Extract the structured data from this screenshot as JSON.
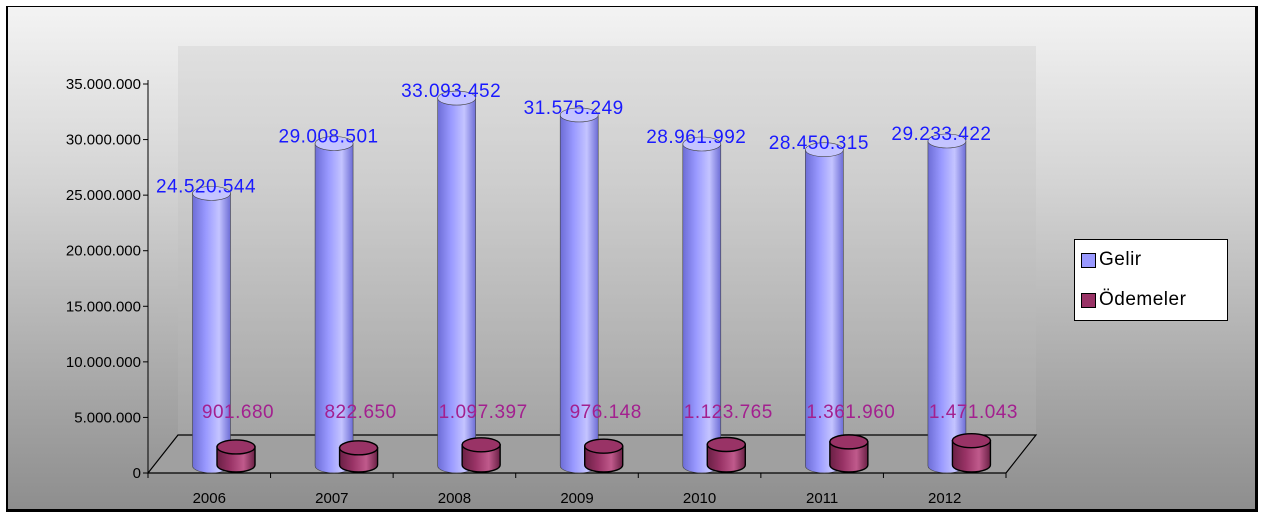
{
  "colors": {
    "gelir": "#9999ff",
    "gelir_dark": "#6d6dd6",
    "gelir_light": "#c4c4ff",
    "odemeler": "#993366",
    "odemeler_dark": "#6a2045",
    "odemeler_light": "#c05a8c",
    "gelir_label": "#1a1aff",
    "odemeler_label": "#a3208f"
  },
  "chart_data": {
    "type": "bar",
    "style": "3d-cylinder",
    "categories": [
      "2006",
      "2007",
      "2008",
      "2009",
      "2010",
      "2011",
      "2012"
    ],
    "series": [
      {
        "name": "Gelir",
        "values": [
          24520544,
          29008501,
          33093452,
          31575249,
          28961992,
          28450315,
          29233422
        ],
        "labels": [
          "24.520.544",
          "29.008.501",
          "33.093.452",
          "31.575.249",
          "28.961.992",
          "28.450.315",
          "29.233.422"
        ]
      },
      {
        "name": "Ödemeler",
        "values": [
          901680,
          822650,
          1097397,
          976148,
          1123765,
          1361960,
          1471043
        ],
        "labels": [
          "901.680",
          "822.650",
          "1.097.397",
          "976.148",
          "1.123.765",
          "1.361.960",
          "1.471.043"
        ]
      }
    ],
    "y_ticks": [
      "0",
      "5.000.000",
      "10.000.000",
      "15.000.000",
      "20.000.000",
      "25.000.000",
      "30.000.000",
      "35.000.000"
    ],
    "ylim": [
      0,
      35000000
    ],
    "title": "",
    "xlabel": "",
    "ylabel": "",
    "grid": false,
    "legend_position": "right"
  }
}
